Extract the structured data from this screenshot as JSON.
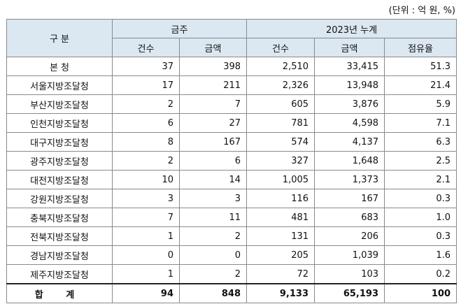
{
  "unit": "(단위 : 억 원, %)",
  "header": {
    "category": "구 분",
    "group_a": "금주",
    "group_b": "2023년 누계",
    "count": "건수",
    "amount": "금액",
    "share": "점유율"
  },
  "rows": [
    {
      "name": "본 청",
      "wc": "37",
      "wa": "398",
      "yc": "2,510",
      "ya": "33,415",
      "sh": "51.3"
    },
    {
      "name": "서울지방조달청",
      "wc": "17",
      "wa": "211",
      "yc": "2,326",
      "ya": "13,948",
      "sh": "21.4"
    },
    {
      "name": "부산지방조달청",
      "wc": "2",
      "wa": "7",
      "yc": "605",
      "ya": "3,876",
      "sh": "5.9"
    },
    {
      "name": "인천지방조달청",
      "wc": "6",
      "wa": "27",
      "yc": "781",
      "ya": "4,598",
      "sh": "7.1"
    },
    {
      "name": "대구지방조달청",
      "wc": "8",
      "wa": "167",
      "yc": "574",
      "ya": "4,137",
      "sh": "6.3"
    },
    {
      "name": "광주지방조달청",
      "wc": "2",
      "wa": "6",
      "yc": "327",
      "ya": "1,648",
      "sh": "2.5"
    },
    {
      "name": "대전지방조달청",
      "wc": "10",
      "wa": "14",
      "yc": "1,005",
      "ya": "1,373",
      "sh": "2.1"
    },
    {
      "name": "강원지방조달청",
      "wc": "3",
      "wa": "3",
      "yc": "116",
      "ya": "167",
      "sh": "0.3"
    },
    {
      "name": "충북지방조달청",
      "wc": "7",
      "wa": "11",
      "yc": "481",
      "ya": "683",
      "sh": "1.0"
    },
    {
      "name": "전북지방조달청",
      "wc": "1",
      "wa": "2",
      "yc": "131",
      "ya": "206",
      "sh": "0.3"
    },
    {
      "name": "경남지방조달청",
      "wc": "0",
      "wa": "0",
      "yc": "205",
      "ya": "1,039",
      "sh": "1.6"
    },
    {
      "name": "제주지방조달청",
      "wc": "1",
      "wa": "2",
      "yc": "72",
      "ya": "103",
      "sh": "0.2"
    }
  ],
  "total": {
    "name": "합 계",
    "wc": "94",
    "wa": "848",
    "yc": "9,133",
    "ya": "65,193",
    "sh": "100"
  }
}
